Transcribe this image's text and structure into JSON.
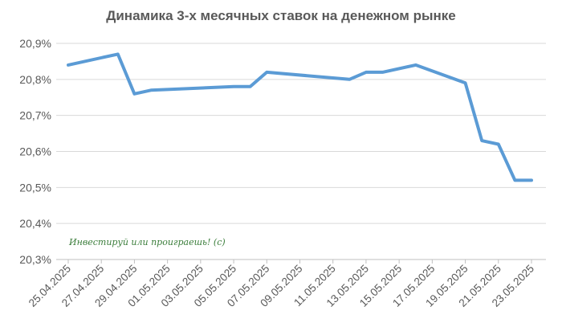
{
  "chart_data": {
    "type": "line",
    "title": "Динамика 3-х месячных ставок на денежном рынке",
    "xlabel": "",
    "ylabel": "",
    "ylim": [
      20.3,
      20.9
    ],
    "yticks": [
      "20,3%",
      "20,4%",
      "20,5%",
      "20,6%",
      "20,7%",
      "20,8%",
      "20,9%"
    ],
    "xticks": [
      "25.04.2025",
      "27.04.2025",
      "29.04.2025",
      "01.05.2025",
      "03.05.2025",
      "05.05.2025",
      "07.05.2025",
      "09.05.2025",
      "11.05.2025",
      "13.05.2025",
      "15.05.2025",
      "17.05.2025",
      "19.05.2025",
      "21.05.2025",
      "23.05.2025"
    ],
    "grid": "horizontal",
    "series": [
      {
        "color": "#5b9bd5",
        "points": [
          {
            "x": "25.04.2025",
            "y": 20.84
          },
          {
            "x": "28.04.2025",
            "y": 20.87
          },
          {
            "x": "29.04.2025",
            "y": 20.76
          },
          {
            "x": "30.04.2025",
            "y": 20.77
          },
          {
            "x": "05.05.2025",
            "y": 20.78
          },
          {
            "x": "06.05.2025",
            "y": 20.78
          },
          {
            "x": "07.05.2025",
            "y": 20.82
          },
          {
            "x": "12.05.2025",
            "y": 20.8
          },
          {
            "x": "13.05.2025",
            "y": 20.82
          },
          {
            "x": "14.05.2025",
            "y": 20.82
          },
          {
            "x": "16.05.2025",
            "y": 20.84
          },
          {
            "x": "19.05.2025",
            "y": 20.79
          },
          {
            "x": "20.05.2025",
            "y": 20.63
          },
          {
            "x": "21.05.2025",
            "y": 20.62
          },
          {
            "x": "22.05.2025",
            "y": 20.52
          },
          {
            "x": "23.05.2025",
            "y": 20.52
          }
        ]
      }
    ],
    "annotation": "Инвестируй или проиграешь! (с)"
  }
}
